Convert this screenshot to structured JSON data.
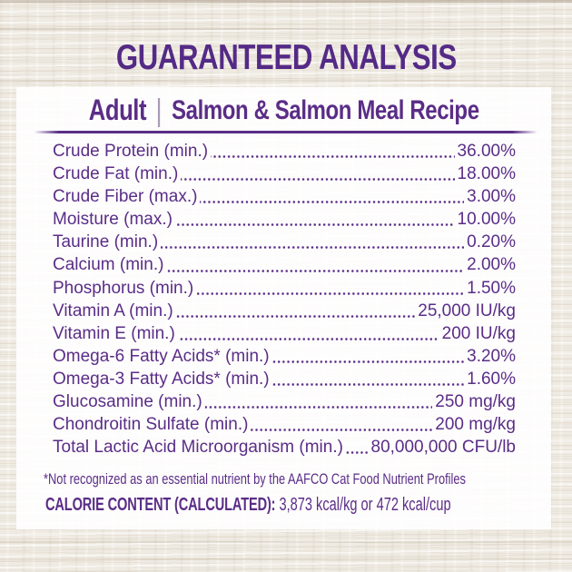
{
  "colors": {
    "purple": "#5a2d87",
    "title_purple": "#542a86",
    "separator": "#a79bb5",
    "panel_bg": "rgba(255,255,255,0.9)"
  },
  "header": {
    "title": "GUARANTEED ANALYSIS"
  },
  "subtitle": {
    "life_stage": "Adult",
    "separator": "|",
    "recipe": "Salmon & Salmon Meal Recipe"
  },
  "nutrients": [
    {
      "label": "Crude Protein (min.)",
      "value": "36.00%"
    },
    {
      "label": "Crude Fat (min.)",
      "value": "18.00%"
    },
    {
      "label": "Crude Fiber (max.)",
      "value": "3.00%"
    },
    {
      "label": "Moisture (max.)",
      "value": "10.00%"
    },
    {
      "label": "Taurine (min.)",
      "value": "0.20%"
    },
    {
      "label": "Calcium (min.)",
      "value": "2.00%"
    },
    {
      "label": "Phosphorus (min.)",
      "value": "1.50%"
    },
    {
      "label": "Vitamin A (min.)",
      "value": "25,000 IU/kg"
    },
    {
      "label": "Vitamin E (min.)",
      "value": "200 IU/kg"
    },
    {
      "label": "Omega-6 Fatty Acids* (min.)",
      "value": "3.20%"
    },
    {
      "label": "Omega-3 Fatty Acids* (min.)",
      "value": "1.60%"
    },
    {
      "label": "Glucosamine (min.)",
      "value": "250 mg/kg"
    },
    {
      "label": "Chondroitin Sulfate (min.)",
      "value": "200 mg/kg"
    },
    {
      "label": "Total Lactic Acid Microorganism (min.)",
      "value": "80,000,000 CFU/lb"
    }
  ],
  "footnote": "*Not recognized as an essential nutrient by the AAFCO Cat Food Nutrient Profiles",
  "calorie": {
    "label": "CALORIE CONTENT (CALCULATED):",
    "value": "3,873 kcal/kg or 472 kcal/cup"
  }
}
